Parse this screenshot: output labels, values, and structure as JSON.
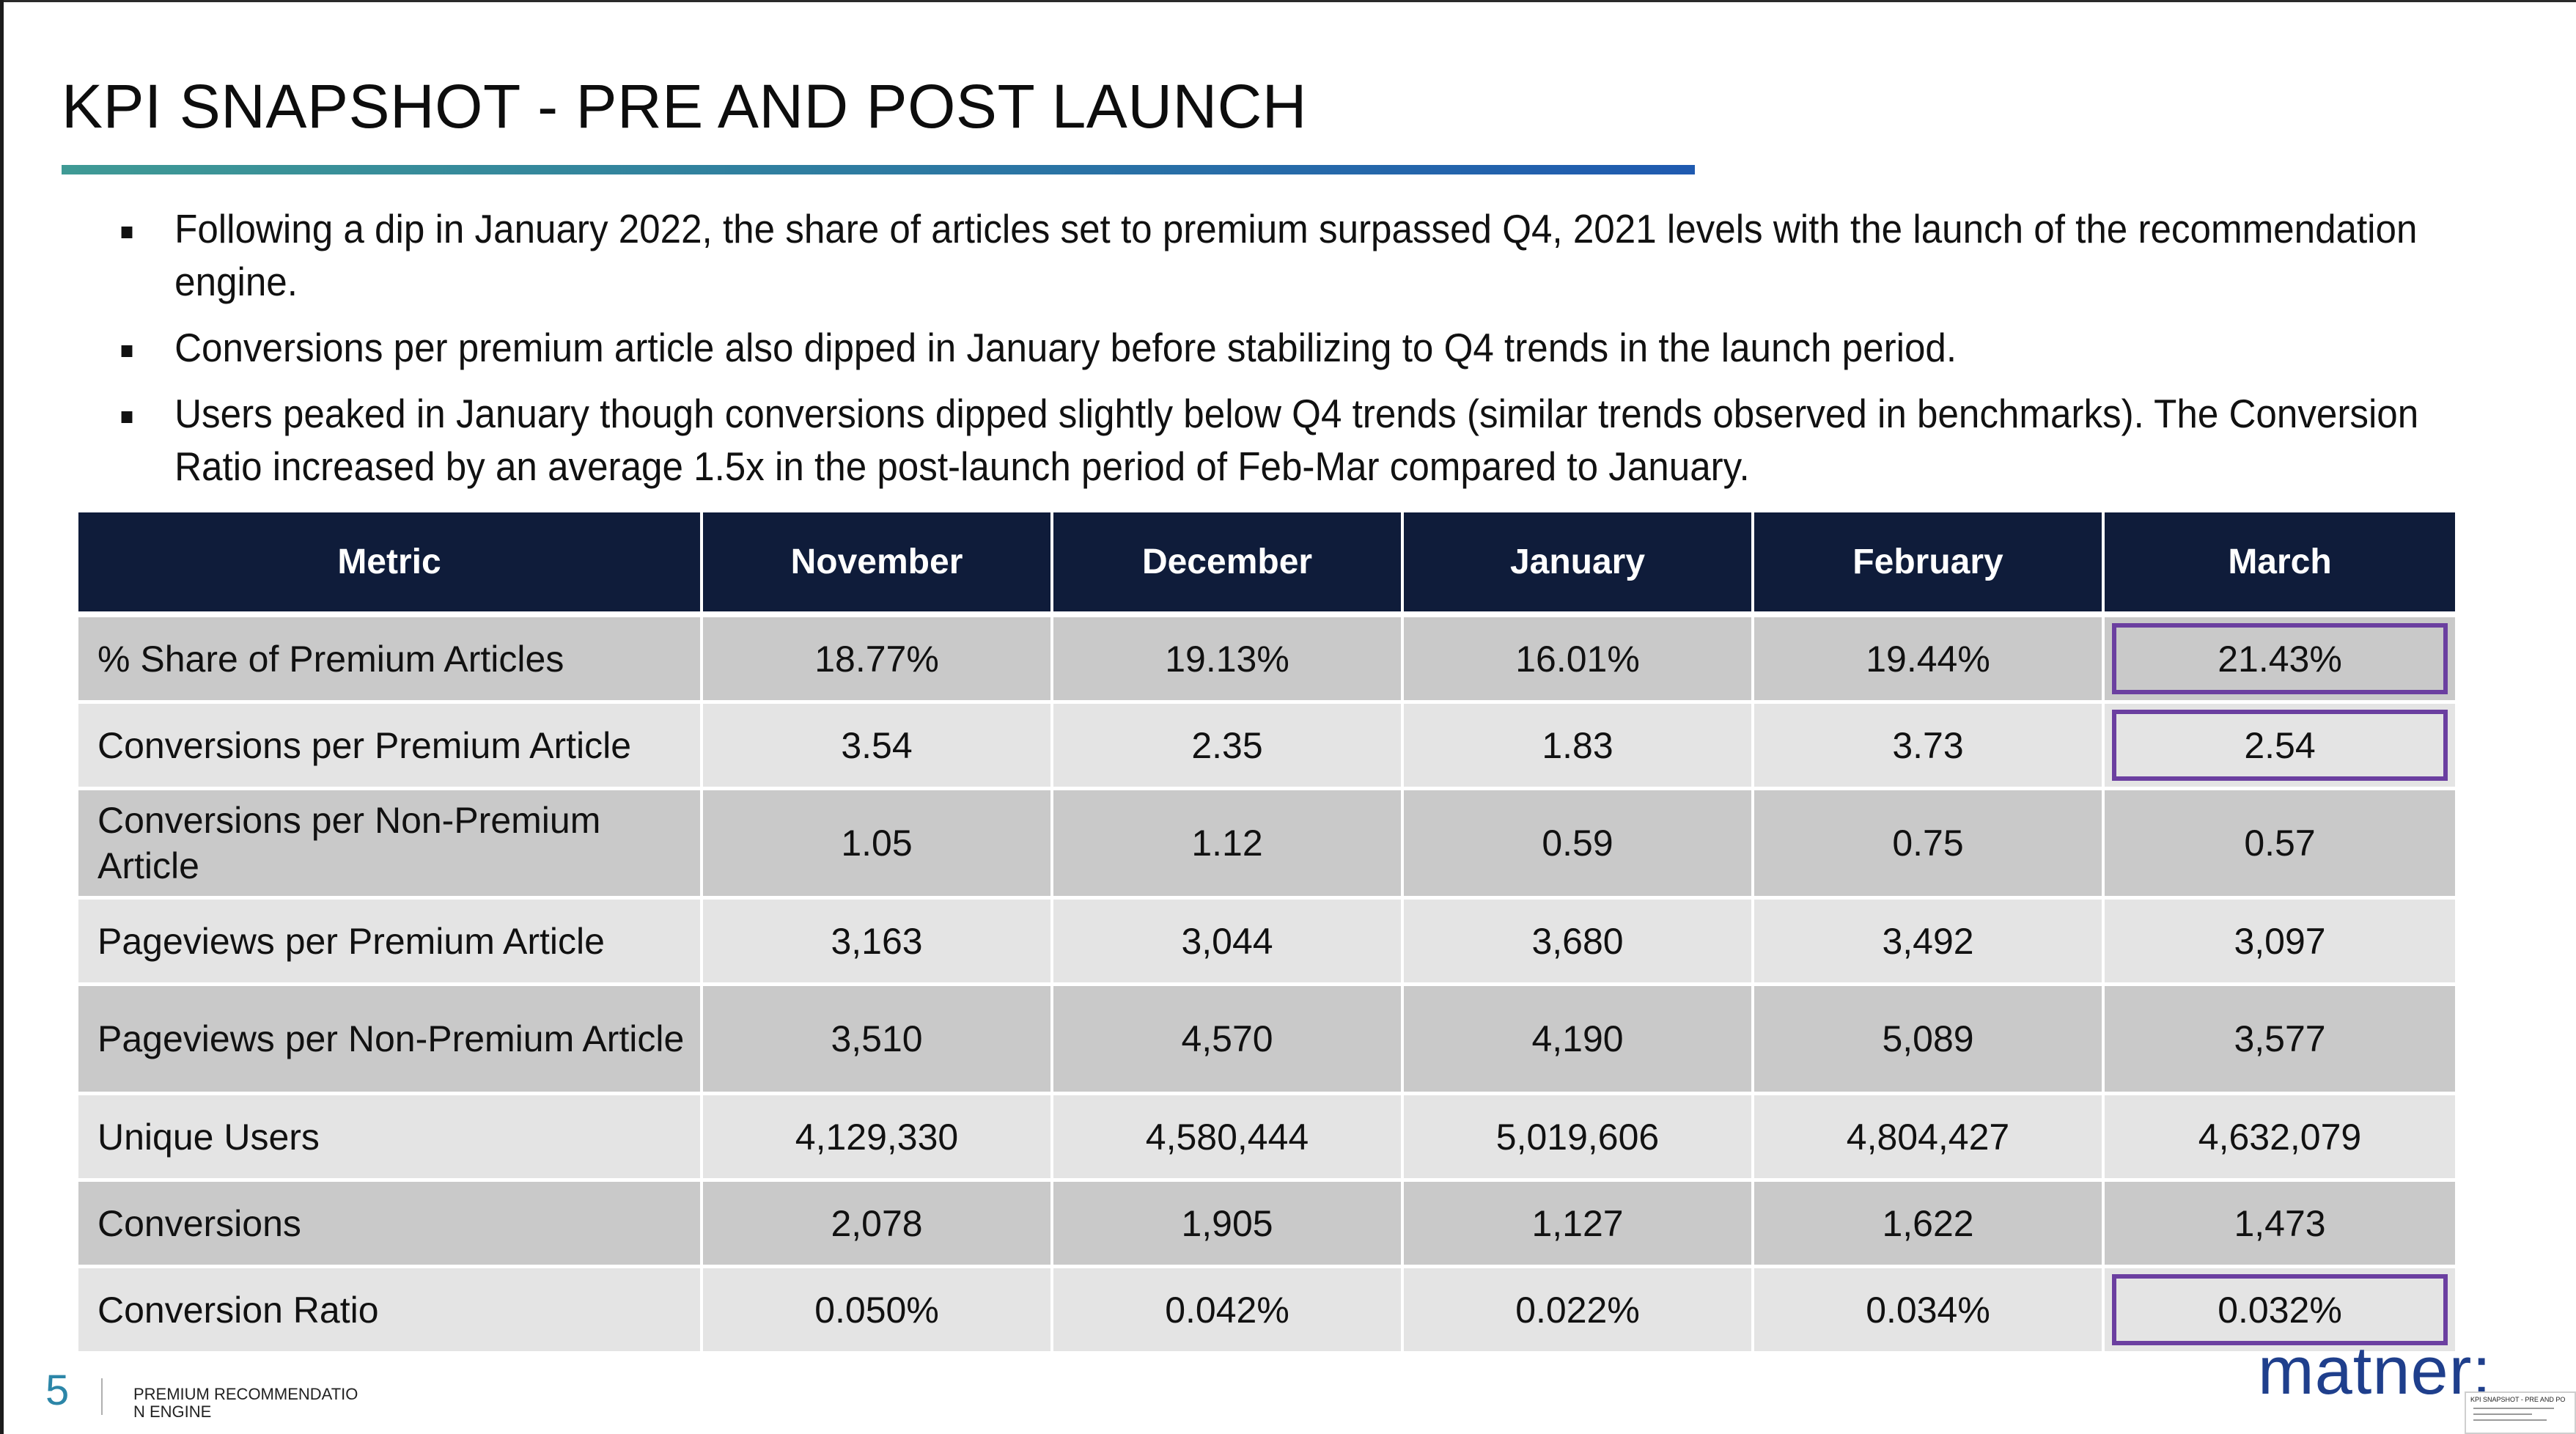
{
  "slide": {
    "title": "KPI SNAPSHOT - PRE AND POST LAUNCH",
    "bullets": [
      "Following a dip in January 2022, the share of articles set to premium surpassed Q4, 2021 levels with the launch of the recommendation engine.",
      "Conversions per premium article also dipped in January before stabilizing to Q4 trends in the launch period.",
      "Users peaked in January though conversions dipped slightly below Q4 trends (similar trends observed in benchmarks). The Conversion Ratio increased by an average 1.5x in the post-launch period of Feb-Mar compared to January."
    ]
  },
  "table": {
    "headers": [
      "Metric",
      "November",
      "December",
      "January",
      "February",
      "March"
    ],
    "rows": [
      {
        "metric": "% Share of Premium Articles",
        "values": [
          "18.77%",
          "19.13%",
          "16.01%",
          "19.44%",
          "21.43%"
        ],
        "highlight_last": true
      },
      {
        "metric": "Conversions per Premium Article",
        "values": [
          "3.54",
          "2.35",
          "1.83",
          "3.73",
          "2.54"
        ],
        "highlight_last": true
      },
      {
        "metric": "Conversions per Non-Premium Article",
        "values": [
          "1.05",
          "1.12",
          "0.59",
          "0.75",
          "0.57"
        ],
        "highlight_last": false
      },
      {
        "metric": "Pageviews per Premium Article",
        "values": [
          "3,163",
          "3,044",
          "3,680",
          "3,492",
          "3,097"
        ],
        "highlight_last": false
      },
      {
        "metric": "Pageviews per Non-Premium Article",
        "values": [
          "3,510",
          "4,570",
          "4,190",
          "5,089",
          "3,577"
        ],
        "highlight_last": false
      },
      {
        "metric": "Unique Users",
        "values": [
          "4,129,330",
          "4,580,444",
          "5,019,606",
          "4,804,427",
          "4,632,079"
        ],
        "highlight_last": false
      },
      {
        "metric": "Conversions",
        "values": [
          "2,078",
          "1,905",
          "1,127",
          "1,622",
          "1,473"
        ],
        "highlight_last": false
      },
      {
        "metric": "Conversion Ratio",
        "values": [
          "0.050%",
          "0.042%",
          "0.022%",
          "0.034%",
          "0.032%"
        ],
        "highlight_last": true
      }
    ],
    "highlight_color": "#6b3fa0",
    "header_color": "#0f1c3a"
  },
  "footer": {
    "page_number": "5",
    "caption": "PREMIUM RECOMMENDATION ENGINE",
    "logo": "matner:"
  },
  "thumbnail": {
    "title": "KPI SNAPSHOT - PRE AND PO"
  },
  "colors": {
    "title_rule_start": "#3f9a95",
    "title_rule_end": "#1f5ab0",
    "page_number": "#2c86a8",
    "logo": "#1f3f8c"
  }
}
